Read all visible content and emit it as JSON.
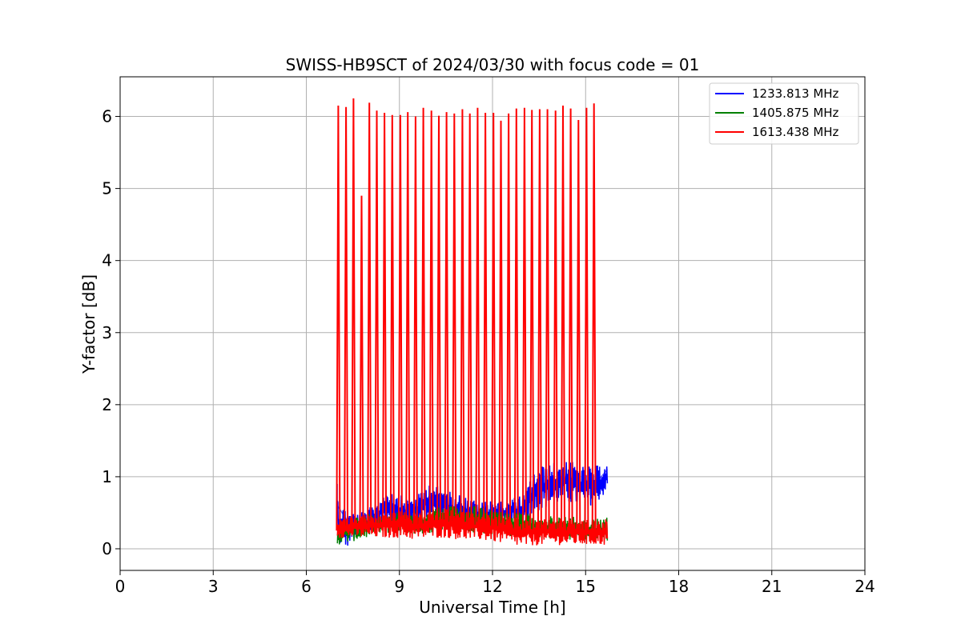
{
  "chart_data": {
    "type": "line",
    "title": "SWISS-HB9SCT of 2024/03/30 with focus code = 01",
    "xlabel": "Universal Time [h]",
    "ylabel": "Y-factor [dB]",
    "xlim": [
      0,
      24
    ],
    "ylim": [
      -0.3,
      6.55
    ],
    "xticks": [
      0,
      3,
      6,
      9,
      12,
      15,
      18,
      21,
      24
    ],
    "xtick_labels": [
      "0",
      "3",
      "6",
      "9",
      "12",
      "15",
      "18",
      "21",
      "24"
    ],
    "yticks": [
      0,
      1,
      2,
      3,
      4,
      5,
      6
    ],
    "ytick_labels": [
      "0",
      "1",
      "2",
      "3",
      "4",
      "5",
      "6"
    ],
    "grid": true,
    "legend_position": "top-right",
    "series": [
      {
        "name": "1233.813 MHz",
        "color": "#0000ff",
        "x": [
          7.0,
          7.0,
          7.3,
          7.6,
          8.0,
          8.3,
          8.6,
          9.0,
          9.3,
          9.6,
          10.0,
          10.3,
          10.6,
          11.0,
          11.3,
          11.6,
          12.0,
          12.3,
          12.6,
          13.0,
          13.3,
          13.6,
          14.0,
          14.3,
          14.6,
          15.0,
          15.3,
          15.7
        ],
        "y": [
          0.9,
          0.6,
          0.4,
          0.3,
          0.35,
          0.45,
          0.65,
          0.55,
          0.5,
          0.55,
          0.75,
          0.65,
          0.6,
          0.55,
          0.5,
          0.45,
          0.5,
          0.45,
          0.5,
          0.55,
          0.8,
          0.9,
          0.95,
          1.0,
          0.95,
          0.9,
          0.9,
          1.1
        ],
        "band_low": [
          0.55,
          0.05,
          0.0,
          0.15,
          0.2,
          0.25,
          0.35,
          0.3,
          0.3,
          0.35,
          0.45,
          0.4,
          0.35,
          0.35,
          0.3,
          0.3,
          0.3,
          0.3,
          0.35,
          0.35,
          0.5,
          0.55,
          0.6,
          0.65,
          0.6,
          0.6,
          0.6,
          0.8
        ],
        "band_high": [
          0.95,
          0.75,
          0.55,
          0.5,
          0.55,
          0.7,
          0.85,
          0.75,
          0.7,
          0.75,
          0.95,
          0.85,
          0.8,
          0.75,
          0.7,
          0.65,
          0.7,
          0.65,
          0.7,
          0.75,
          1.05,
          1.15,
          1.2,
          1.25,
          1.2,
          1.15,
          1.15,
          1.2
        ]
      },
      {
        "name": "1405.875 MHz",
        "color": "#008000",
        "x": [
          7.0,
          7.5,
          8.0,
          8.5,
          9.0,
          9.5,
          10.0,
          10.5,
          11.0,
          11.5,
          12.0,
          12.5,
          13.0,
          13.5,
          14.0,
          14.5,
          15.0,
          15.5,
          15.7
        ],
        "y": [
          0.25,
          0.3,
          0.33,
          0.38,
          0.4,
          0.4,
          0.42,
          0.45,
          0.44,
          0.42,
          0.4,
          0.38,
          0.35,
          0.33,
          0.32,
          0.3,
          0.28,
          0.27,
          0.28
        ],
        "band_low": [
          0.05,
          0.1,
          0.15,
          0.2,
          0.2,
          0.2,
          0.22,
          0.25,
          0.25,
          0.22,
          0.2,
          0.18,
          0.15,
          0.15,
          0.12,
          0.12,
          0.1,
          0.1,
          0.1
        ],
        "band_high": [
          0.35,
          0.45,
          0.48,
          0.5,
          0.52,
          0.55,
          0.55,
          0.6,
          0.58,
          0.6,
          0.55,
          0.52,
          0.5,
          0.48,
          0.45,
          0.45,
          0.42,
          0.42,
          0.45
        ]
      },
      {
        "name": "1613.438 MHz",
        "color": "#ff0000",
        "x": [
          7.0,
          7.5,
          8.0,
          8.5,
          9.0,
          9.5,
          10.0,
          10.5,
          11.0,
          11.5,
          12.0,
          12.5,
          13.0,
          13.5,
          14.0,
          14.5,
          15.0,
          15.5,
          15.7
        ],
        "y": [
          0.25,
          0.28,
          0.3,
          0.32,
          0.33,
          0.32,
          0.33,
          0.34,
          0.33,
          0.32,
          0.3,
          0.28,
          0.26,
          0.25,
          0.25,
          0.25,
          0.24,
          0.24,
          0.25
        ],
        "band_low": [
          0.15,
          0.15,
          0.15,
          0.15,
          0.15,
          0.12,
          0.15,
          0.15,
          0.12,
          0.12,
          0.1,
          0.05,
          0.02,
          0.05,
          0.05,
          0.05,
          0.05,
          0.05,
          0.05
        ],
        "band_high": [
          0.45,
          0.45,
          0.48,
          0.5,
          0.52,
          0.5,
          0.52,
          0.55,
          0.52,
          0.5,
          0.48,
          0.45,
          0.42,
          0.42,
          0.42,
          0.4,
          0.4,
          0.4,
          0.42
        ],
        "spikes": [
          {
            "x": 7.03,
            "y": 6.15
          },
          {
            "x": 7.28,
            "y": 6.13
          },
          {
            "x": 7.52,
            "y": 6.25
          },
          {
            "x": 7.78,
            "y": 4.9
          },
          {
            "x": 8.03,
            "y": 6.19
          },
          {
            "x": 8.27,
            "y": 6.08
          },
          {
            "x": 8.52,
            "y": 6.05
          },
          {
            "x": 8.77,
            "y": 6.02
          },
          {
            "x": 9.03,
            "y": 6.02
          },
          {
            "x": 9.27,
            "y": 6.06
          },
          {
            "x": 9.52,
            "y": 6.0
          },
          {
            "x": 9.77,
            "y": 6.12
          },
          {
            "x": 10.03,
            "y": 6.08
          },
          {
            "x": 10.27,
            "y": 6.01
          },
          {
            "x": 10.52,
            "y": 6.06
          },
          {
            "x": 10.77,
            "y": 6.04
          },
          {
            "x": 11.03,
            "y": 6.1
          },
          {
            "x": 11.27,
            "y": 6.04
          },
          {
            "x": 11.52,
            "y": 6.12
          },
          {
            "x": 11.77,
            "y": 6.05
          },
          {
            "x": 12.03,
            "y": 6.05
          },
          {
            "x": 12.27,
            "y": 5.94
          },
          {
            "x": 12.52,
            "y": 6.04
          },
          {
            "x": 12.77,
            "y": 6.11
          },
          {
            "x": 13.03,
            "y": 6.12
          },
          {
            "x": 13.27,
            "y": 6.09
          },
          {
            "x": 13.52,
            "y": 6.1
          },
          {
            "x": 13.77,
            "y": 6.1
          },
          {
            "x": 14.03,
            "y": 6.08
          },
          {
            "x": 14.27,
            "y": 6.15
          },
          {
            "x": 14.52,
            "y": 6.11
          },
          {
            "x": 14.77,
            "y": 5.95
          },
          {
            "x": 15.03,
            "y": 6.12
          },
          {
            "x": 15.27,
            "y": 6.18
          }
        ]
      }
    ]
  }
}
